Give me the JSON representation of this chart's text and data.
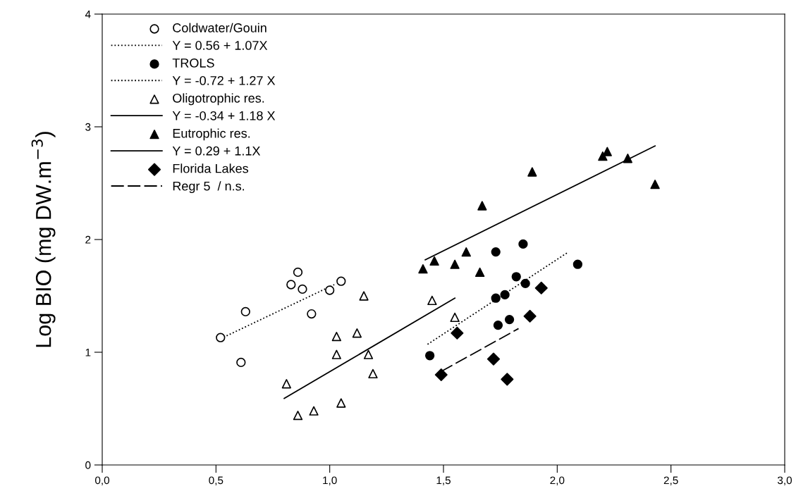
{
  "chart_data": {
    "type": "scatter",
    "ylabel": "Log BIO (mg DW.m$^{−3}$)",
    "xlim": [
      0,
      3
    ],
    "ylim": [
      0,
      4
    ],
    "xticks": [
      {
        "value": 0,
        "label": "0,0"
      },
      {
        "value": 0.5,
        "label": "0,5"
      },
      {
        "value": 1,
        "label": "1,0"
      },
      {
        "value": 1.5,
        "label": "1,5"
      },
      {
        "value": 2,
        "label": "2,0"
      },
      {
        "value": 2.5,
        "label": "2,5"
      },
      {
        "value": 3,
        "label": "3,0"
      }
    ],
    "yticks": [
      0,
      1,
      2,
      3,
      4
    ],
    "grid": false,
    "legend": "top left",
    "series": [
      {
        "name": "Coldwater/Gouin",
        "type": "scatter",
        "marker": "circle",
        "color": "#ffffff",
        "x": [
          0.52,
          0.61,
          0.63,
          0.83,
          0.86,
          0.88,
          0.92,
          1.0,
          1.05
        ],
        "values": [
          1.13,
          0.91,
          1.36,
          1.6,
          1.71,
          1.56,
          1.34,
          1.55,
          1.63
        ]
      },
      {
        "name": "Y = 0.56 + 1.07X",
        "type": "line",
        "line_style": "dotted",
        "marker": "none",
        "color": "#000000",
        "x": [
          0.52,
          1.02
        ],
        "values": [
          1.12,
          1.6
        ]
      },
      {
        "name": "TROLS",
        "type": "scatter",
        "marker": "circle",
        "color": "#000000",
        "x": [
          1.44,
          1.73,
          1.85,
          1.82,
          1.86,
          1.73,
          1.77,
          1.74,
          1.79,
          2.09
        ],
        "values": [
          0.97,
          1.89,
          1.96,
          1.67,
          1.61,
          1.48,
          1.51,
          1.24,
          1.29,
          1.78
        ]
      },
      {
        "name": "Y = -0.72 + 1.27 X",
        "type": "line",
        "line_style": "dotted",
        "marker": "none",
        "color": "#000000",
        "x": [
          1.43,
          2.05
        ],
        "values": [
          1.07,
          1.89
        ]
      },
      {
        "name": "Oligotrophic res.",
        "type": "scatter",
        "marker": "triangle",
        "color": "#ffffff",
        "x": [
          0.81,
          0.86,
          0.93,
          1.05,
          1.03,
          1.03,
          1.12,
          1.17,
          1.19,
          1.15,
          1.45,
          1.55
        ],
        "values": [
          0.72,
          0.44,
          0.48,
          0.55,
          1.14,
          0.98,
          1.17,
          0.98,
          0.81,
          1.5,
          1.46,
          1.31
        ]
      },
      {
        "name": "Y = -0.34 + 1.18 X",
        "type": "line",
        "line_style": "solid",
        "marker": "none",
        "color": "#000000",
        "x": [
          0.8,
          1.55
        ],
        "values": [
          0.59,
          1.48
        ]
      },
      {
        "name": "Eutrophic res.",
        "type": "scatter",
        "marker": "triangle",
        "color": "#000000",
        "x": [
          1.41,
          1.46,
          1.55,
          1.6,
          1.66,
          1.67,
          1.89,
          2.2,
          2.22,
          2.31,
          2.43
        ],
        "values": [
          1.74,
          1.81,
          1.78,
          1.89,
          1.71,
          2.3,
          2.6,
          2.74,
          2.78,
          2.72,
          2.49
        ]
      },
      {
        "name": "Y = 0.29 + 1.1X",
        "type": "line",
        "line_style": "solid",
        "marker": "none",
        "color": "#000000",
        "x": [
          1.42,
          2.43
        ],
        "values": [
          1.82,
          2.83
        ]
      },
      {
        "name": "Florida Lakes",
        "type": "scatter",
        "marker": "diamond",
        "color": "#000000",
        "x": [
          1.56,
          1.49,
          1.72,
          1.78,
          1.93,
          1.88
        ],
        "values": [
          1.17,
          0.8,
          0.94,
          0.76,
          1.57,
          1.32
        ]
      },
      {
        "name": "Regr 5  / n.s.",
        "type": "line",
        "line_style": "dashed",
        "marker": "none",
        "color": "#000000",
        "x": [
          1.49,
          1.83
        ],
        "values": [
          0.83,
          1.21
        ]
      }
    ]
  }
}
